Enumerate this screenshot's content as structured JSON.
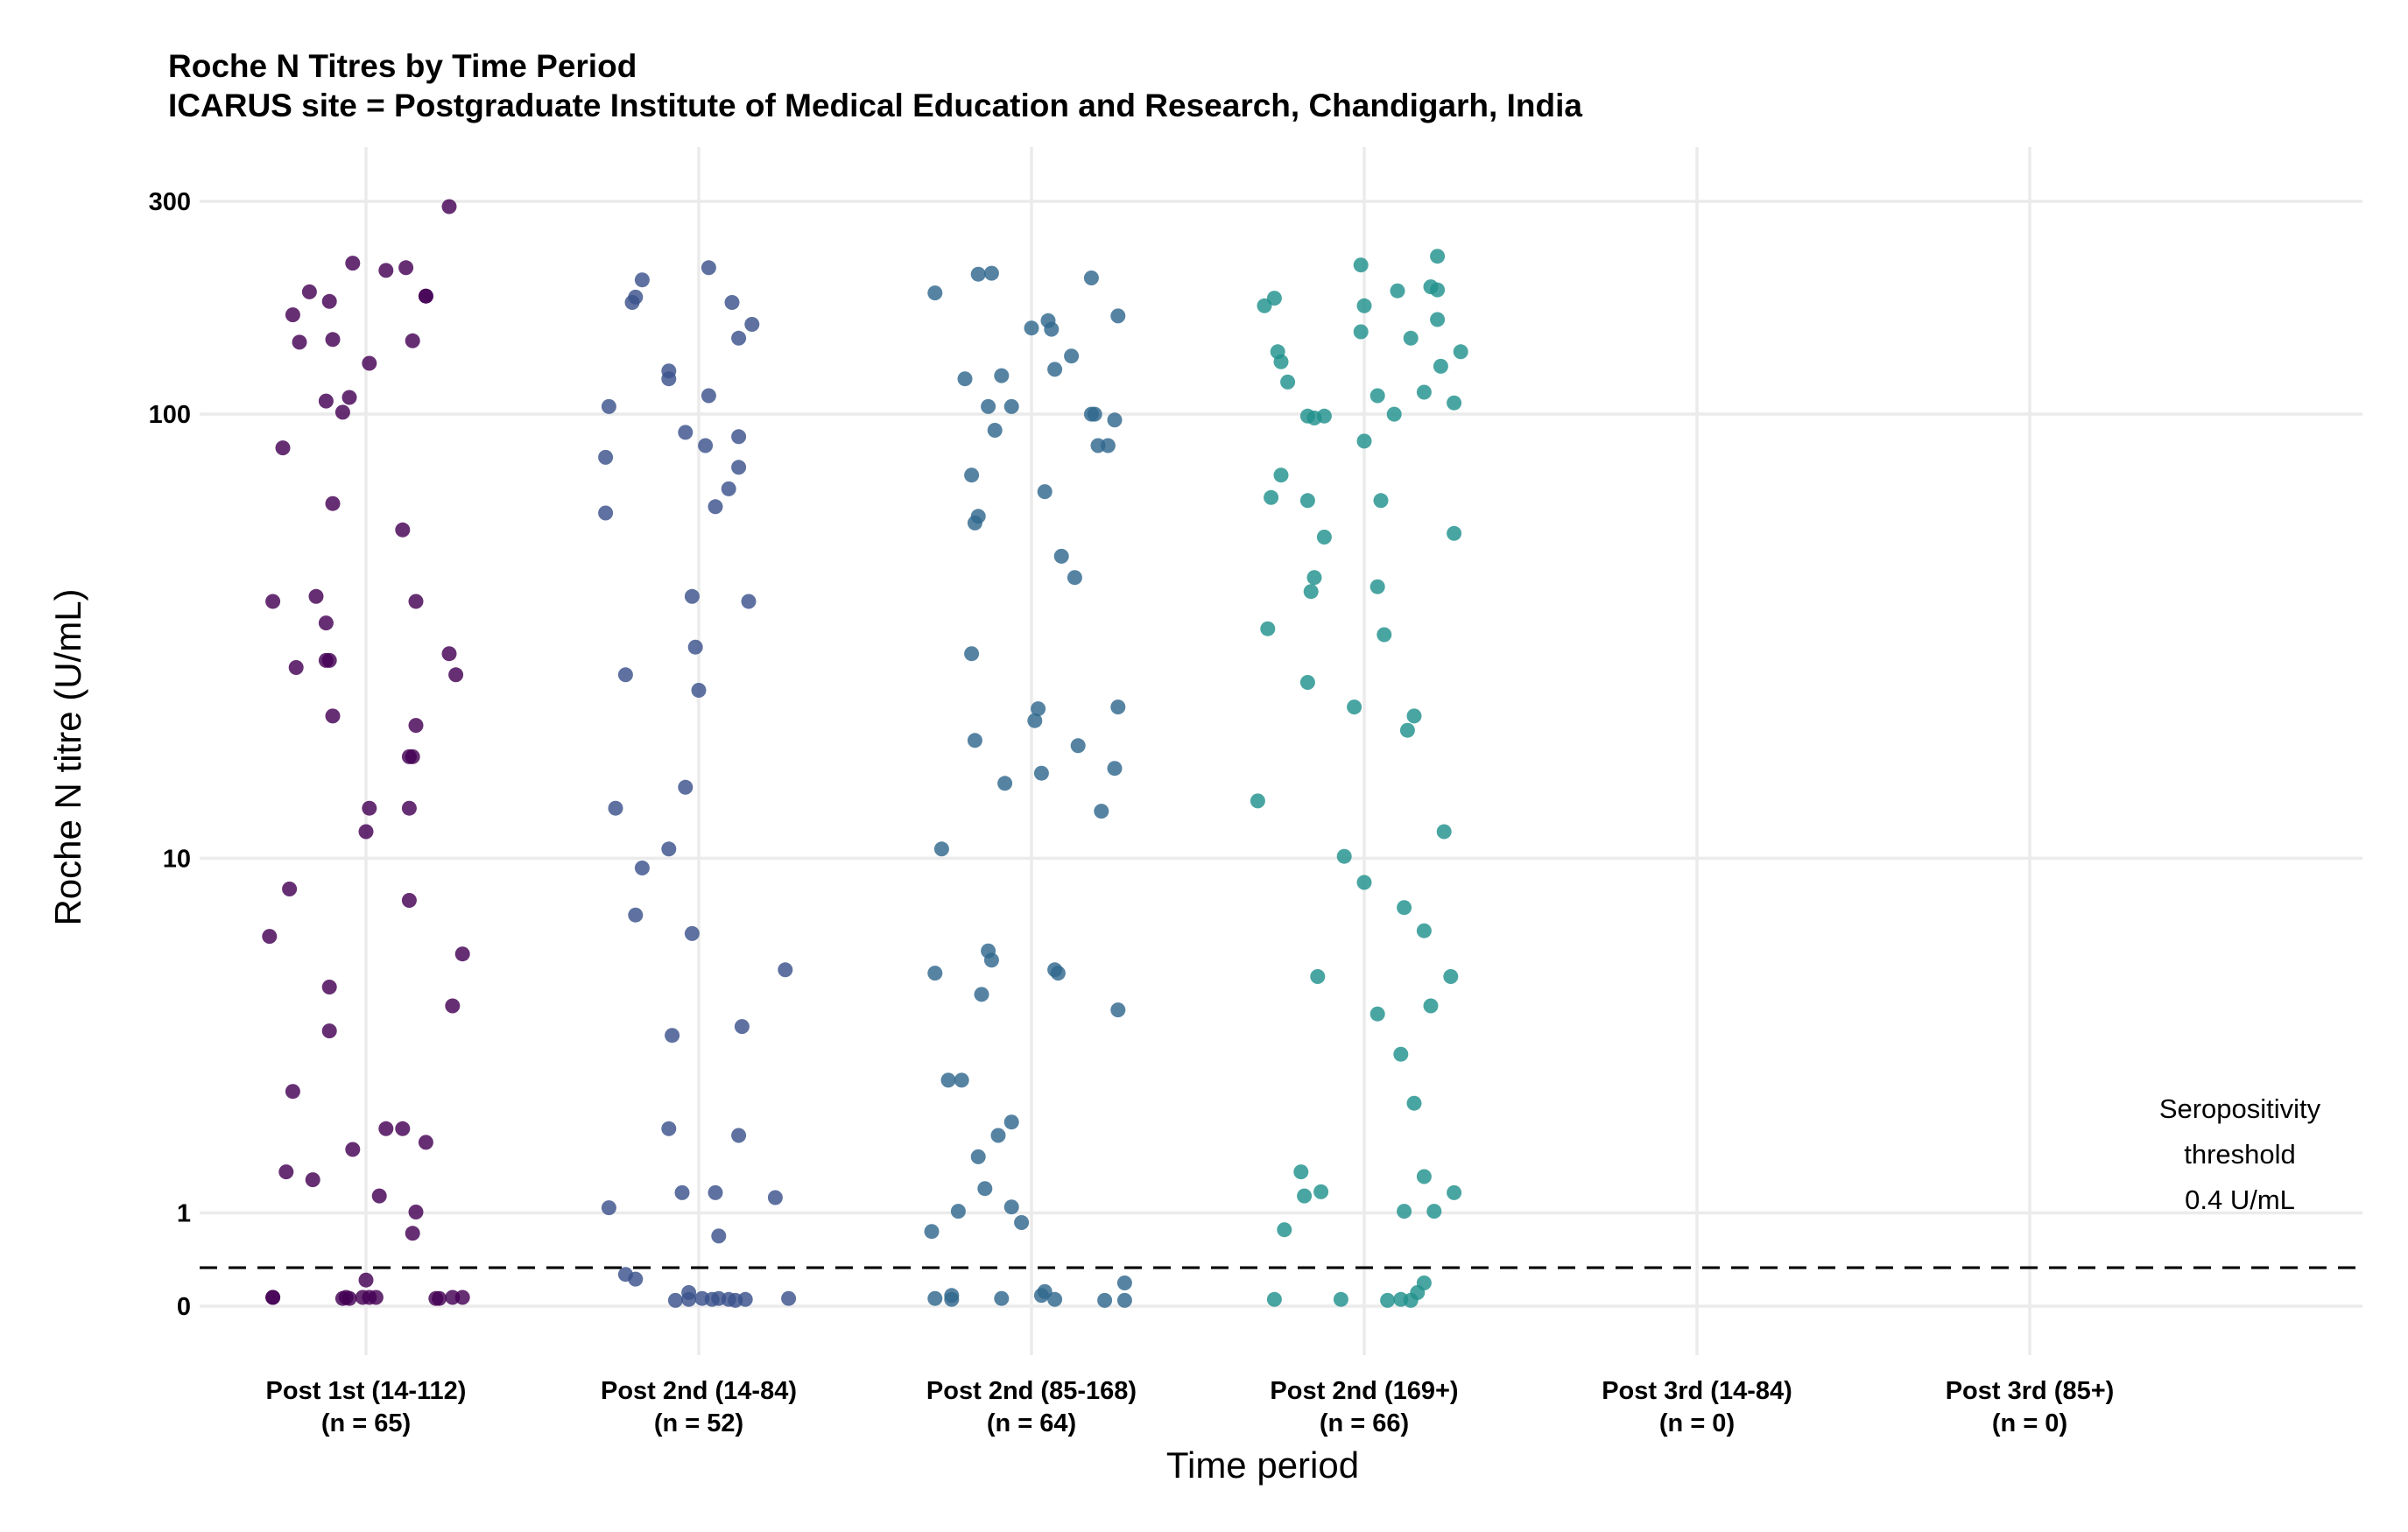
{
  "chart_data": {
    "type": "scatter",
    "title": "Roche N Titres by Time Period",
    "subtitle": "ICARUS site = Postgraduate Institute of Medical Education and Research, Chandigarh, India",
    "xlabel": "Time period",
    "ylabel": "Roche N titre (U/mL)",
    "y_scale": "pseudo-log",
    "ylim": [
      0,
      400
    ],
    "y_ticks": [
      0,
      1,
      10,
      100,
      300
    ],
    "y_tick_labels": [
      "0",
      "1",
      "10",
      "100",
      "300"
    ],
    "grid": true,
    "legend": "none",
    "categories": [
      {
        "label": "Post 1st (14-112)",
        "n_label": "(n = 65)"
      },
      {
        "label": "Post 2nd (14-84)",
        "n_label": "(n = 52)"
      },
      {
        "label": "Post 2nd (85-168)",
        "n_label": "(n = 64)"
      },
      {
        "label": "Post 2nd (169+)",
        "n_label": "(n = 66)"
      },
      {
        "label": "Post 3rd (14-84)",
        "n_label": "(n = 0)"
      },
      {
        "label": "Post 3rd (85+)",
        "n_label": "(n = 0)"
      }
    ],
    "threshold": {
      "value": 0.4,
      "line_style": "dashed",
      "label_lines": [
        "Seropositivity",
        "threshold",
        "0.4 U/mL"
      ]
    },
    "series": [
      {
        "category_index": 0,
        "color": "#440154",
        "points": [
          [
            0.25,
            292
          ],
          [
            -0.04,
            218
          ],
          [
            0.12,
            213
          ],
          [
            0.06,
            210
          ],
          [
            0.18,
            184
          ],
          [
            0.18,
            184
          ],
          [
            -0.17,
            188
          ],
          [
            -0.11,
            179
          ],
          [
            -0.22,
            167
          ],
          [
            -0.1,
            147
          ],
          [
            -0.2,
            145
          ],
          [
            0.14,
            146
          ],
          [
            0.01,
            130
          ],
          [
            -0.12,
            107
          ],
          [
            -0.05,
            109
          ],
          [
            -0.07,
            101
          ],
          [
            -0.25,
            84
          ],
          [
            -0.1,
            63
          ],
          [
            0.11,
            55
          ],
          [
            -0.28,
            38
          ],
          [
            -0.15,
            39
          ],
          [
            0.15,
            38
          ],
          [
            -0.12,
            34
          ],
          [
            -0.12,
            28
          ],
          [
            -0.11,
            28
          ],
          [
            -0.21,
            27
          ],
          [
            0.25,
            29
          ],
          [
            0.27,
            26
          ],
          [
            -0.1,
            21
          ],
          [
            0.15,
            20
          ],
          [
            0.13,
            17
          ],
          [
            0.14,
            17
          ],
          [
            0.13,
            13
          ],
          [
            0.01,
            13
          ],
          [
            0.0,
            11.5
          ],
          [
            -0.23,
            8.5
          ],
          [
            -0.29,
            6.6
          ],
          [
            0.13,
            8
          ],
          [
            0.29,
            6
          ],
          [
            -0.11,
            5
          ],
          [
            -0.11,
            3.9
          ],
          [
            0.26,
            4.5
          ],
          [
            -0.22,
            2.7
          ],
          [
            0.06,
            2.1
          ],
          [
            0.11,
            2.1
          ],
          [
            0.18,
            1.9
          ],
          [
            -0.04,
            1.8
          ],
          [
            -0.24,
            1.5
          ],
          [
            -0.16,
            1.4
          ],
          [
            0.04,
            1.2
          ],
          [
            0.15,
            1.01
          ],
          [
            0.14,
            0.77
          ],
          [
            0.0,
            0.27
          ],
          [
            -0.28,
            0.09
          ],
          [
            -0.28,
            0.09
          ],
          [
            -0.07,
            0.08
          ],
          [
            -0.06,
            0.09
          ],
          [
            -0.05,
            0.08
          ],
          [
            -0.01,
            0.09
          ],
          [
            0.01,
            0.09
          ],
          [
            0.03,
            0.09
          ],
          [
            0.21,
            0.08
          ],
          [
            0.22,
            0.08
          ],
          [
            0.26,
            0.09
          ],
          [
            0.29,
            0.09
          ]
        ]
      },
      {
        "category_index": 1,
        "color": "#3b528b",
        "points": [
          [
            0.03,
            213
          ],
          [
            -0.17,
            200
          ],
          [
            -0.19,
            183
          ],
          [
            -0.2,
            178
          ],
          [
            0.1,
            178
          ],
          [
            0.16,
            159
          ],
          [
            0.12,
            148
          ],
          [
            -0.09,
            125
          ],
          [
            -0.09,
            120
          ],
          [
            0.03,
            110
          ],
          [
            -0.27,
            104
          ],
          [
            -0.04,
            91
          ],
          [
            0.12,
            89
          ],
          [
            0.02,
            85
          ],
          [
            -0.28,
            80
          ],
          [
            0.12,
            76
          ],
          [
            0.09,
            68
          ],
          [
            0.05,
            62
          ],
          [
            -0.28,
            60
          ],
          [
            -0.02,
            39
          ],
          [
            0.15,
            38
          ],
          [
            -0.01,
            30
          ],
          [
            -0.22,
            26
          ],
          [
            0.0,
            24
          ],
          [
            -0.04,
            14.5
          ],
          [
            -0.25,
            13
          ],
          [
            -0.09,
            10.5
          ],
          [
            -0.17,
            9.5
          ],
          [
            -0.19,
            7.4
          ],
          [
            -0.02,
            6.7
          ],
          [
            0.26,
            5.5
          ],
          [
            0.13,
            4
          ],
          [
            -0.08,
            3.8
          ],
          [
            -0.09,
            2.1
          ],
          [
            0.12,
            2
          ],
          [
            -0.05,
            1.24
          ],
          [
            0.05,
            1.24
          ],
          [
            0.23,
            1.18
          ],
          [
            -0.27,
            1.06
          ],
          [
            0.06,
            0.74
          ],
          [
            -0.22,
            0.33
          ],
          [
            -0.19,
            0.28
          ],
          [
            -0.03,
            0.14
          ],
          [
            -0.07,
            0.06
          ],
          [
            -0.03,
            0.07
          ],
          [
            0.01,
            0.08
          ],
          [
            0.04,
            0.07
          ],
          [
            0.06,
            0.08
          ],
          [
            0.09,
            0.07
          ],
          [
            0.11,
            0.06
          ],
          [
            0.14,
            0.07
          ],
          [
            0.27,
            0.08
          ]
        ]
      },
      {
        "category_index": 2,
        "color": "#31688e",
        "points": [
          [
            -0.12,
            207
          ],
          [
            -0.16,
            206
          ],
          [
            0.18,
            202
          ],
          [
            -0.29,
            187
          ],
          [
            0.26,
            166
          ],
          [
            0.05,
            162
          ],
          [
            0.0,
            156
          ],
          [
            0.06,
            155
          ],
          [
            0.12,
            135
          ],
          [
            -0.2,
            120
          ],
          [
            0.07,
            126
          ],
          [
            -0.09,
            122
          ],
          [
            -0.06,
            104
          ],
          [
            -0.13,
            104
          ],
          [
            0.18,
            100
          ],
          [
            0.19,
            100
          ],
          [
            0.25,
            97
          ],
          [
            -0.11,
            92
          ],
          [
            0.2,
            85
          ],
          [
            0.23,
            85
          ],
          [
            0.04,
            67
          ],
          [
            -0.18,
            73
          ],
          [
            -0.16,
            59
          ],
          [
            -0.17,
            57
          ],
          [
            0.09,
            48
          ],
          [
            0.13,
            43
          ],
          [
            -0.18,
            29
          ],
          [
            0.26,
            22
          ],
          [
            -0.17,
            18.5
          ],
          [
            0.01,
            20.5
          ],
          [
            0.02,
            21.8
          ],
          [
            0.14,
            18
          ],
          [
            0.25,
            16
          ],
          [
            0.03,
            15.6
          ],
          [
            -0.08,
            14.8
          ],
          [
            0.21,
            12.8
          ],
          [
            -0.27,
            10.5
          ],
          [
            -0.13,
            6.1
          ],
          [
            -0.29,
            5.4
          ],
          [
            -0.12,
            5.8
          ],
          [
            0.07,
            5.5
          ],
          [
            0.08,
            5.4
          ],
          [
            -0.15,
            4.8
          ],
          [
            0.26,
            4.4
          ],
          [
            -0.25,
            2.9
          ],
          [
            -0.21,
            2.9
          ],
          [
            -0.06,
            2.2
          ],
          [
            -0.1,
            2.0
          ],
          [
            -0.16,
            1.7
          ],
          [
            -0.14,
            1.29
          ],
          [
            -0.06,
            1.07
          ],
          [
            -0.22,
            1.02
          ],
          [
            -0.03,
            0.89
          ],
          [
            -0.3,
            0.79
          ],
          [
            0.28,
            0.24
          ],
          [
            0.04,
            0.15
          ],
          [
            0.03,
            0.11
          ],
          [
            -0.24,
            0.11
          ],
          [
            -0.24,
            0.07
          ],
          [
            -0.29,
            0.08
          ],
          [
            -0.09,
            0.08
          ],
          [
            0.07,
            0.07
          ],
          [
            0.22,
            0.06
          ],
          [
            0.28,
            0.06
          ]
        ]
      },
      {
        "category_index": 3,
        "color": "#21918c",
        "points": [
          [
            0.22,
            226
          ],
          [
            -0.01,
            216
          ],
          [
            0.1,
            189
          ],
          [
            0.2,
            193
          ],
          [
            0.22,
            190
          ],
          [
            -0.27,
            182
          ],
          [
            -0.3,
            175
          ],
          [
            0.0,
            175
          ],
          [
            0.22,
            163
          ],
          [
            -0.01,
            153
          ],
          [
            0.14,
            148
          ],
          [
            0.29,
            138
          ],
          [
            -0.26,
            138
          ],
          [
            -0.25,
            131
          ],
          [
            0.23,
            128
          ],
          [
            -0.23,
            118
          ],
          [
            0.04,
            110
          ],
          [
            0.18,
            112
          ],
          [
            0.27,
            106
          ],
          [
            -0.17,
            99
          ],
          [
            -0.12,
            99
          ],
          [
            -0.15,
            98
          ],
          [
            0.09,
            100
          ],
          [
            0.0,
            87
          ],
          [
            -0.25,
            73
          ],
          [
            -0.28,
            65
          ],
          [
            -0.17,
            64
          ],
          [
            0.05,
            64
          ],
          [
            -0.12,
            53
          ],
          [
            0.27,
            54
          ],
          [
            -0.15,
            43
          ],
          [
            -0.16,
            40
          ],
          [
            0.04,
            41
          ],
          [
            -0.29,
            33
          ],
          [
            0.06,
            32
          ],
          [
            -0.17,
            25
          ],
          [
            -0.03,
            22
          ],
          [
            0.15,
            21
          ],
          [
            0.13,
            19.5
          ],
          [
            -0.32,
            13.5
          ],
          [
            0.24,
            11.5
          ],
          [
            -0.06,
            10.1
          ],
          [
            0.0,
            8.8
          ],
          [
            0.12,
            7.7
          ],
          [
            0.18,
            6.8
          ],
          [
            -0.14,
            5.3
          ],
          [
            0.26,
            5.3
          ],
          [
            0.04,
            4.3
          ],
          [
            0.2,
            4.5
          ],
          [
            0.11,
            3.4
          ],
          [
            0.15,
            2.5
          ],
          [
            -0.19,
            1.5
          ],
          [
            -0.13,
            1.25
          ],
          [
            -0.18,
            1.2
          ],
          [
            0.18,
            1.44
          ],
          [
            0.27,
            1.24
          ],
          [
            0.12,
            1.02
          ],
          [
            0.21,
            1.02
          ],
          [
            -0.24,
            0.81
          ],
          [
            0.18,
            0.24
          ],
          [
            0.16,
            0.14
          ],
          [
            -0.27,
            0.07
          ],
          [
            -0.07,
            0.07
          ],
          [
            0.07,
            0.06
          ],
          [
            0.11,
            0.07
          ],
          [
            0.14,
            0.06
          ]
        ]
      }
    ]
  }
}
